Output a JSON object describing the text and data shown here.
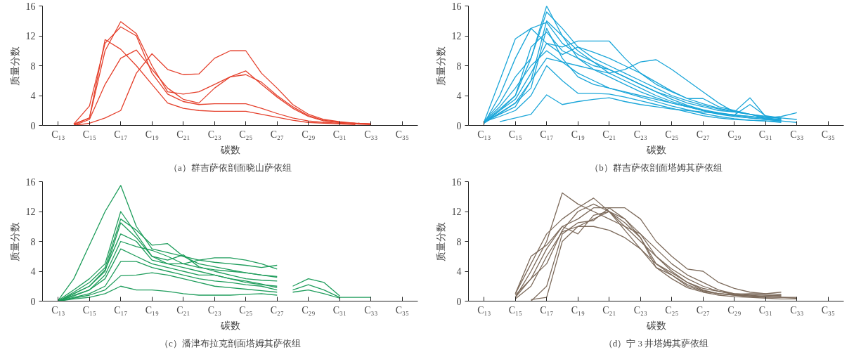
{
  "chart_data": [
    {
      "type": "line",
      "title": "（a）群吉萨依剖面晓山萨依组",
      "xlabel": "碳数",
      "ylabel": "质量分数",
      "ylim": [
        0,
        16
      ],
      "grid": false,
      "categories": [
        "C₁₃",
        null,
        "C₁₅",
        null,
        "C₁₇",
        null,
        "C₁₉",
        null,
        "C₂₁",
        null,
        "C₂₃",
        null,
        "C₂₅",
        null,
        "C₂₇",
        null,
        "C₂₉",
        null,
        "C₃₁",
        null,
        "C₃₃",
        null,
        "C₃₅"
      ],
      "yticks": [
        0,
        4,
        8,
        12,
        16
      ],
      "series": [
        {
          "color": "#e5412d",
          "values": [
            null,
            0.1,
            1,
            10,
            13.9,
            12.3,
            8,
            4.5,
            4.2,
            4.5,
            5.5,
            6.5,
            7.3,
            5.5,
            3.8,
            2.3,
            1.2,
            0.6,
            0.4,
            0.3,
            0.2,
            null,
            null
          ]
        },
        {
          "color": "#e5412d",
          "values": [
            null,
            0.2,
            2.6,
            11,
            13.2,
            12,
            7,
            4.2,
            3.2,
            2.8,
            2.9,
            2.9,
            2.9,
            2.3,
            1.6,
            1,
            0.6,
            0.4,
            0.3,
            0.2,
            0.1,
            null,
            null
          ]
        },
        {
          "color": "#e5412d",
          "values": [
            null,
            0.2,
            1,
            11.5,
            10.2,
            8,
            5.5,
            3,
            2.3,
            2,
            1.9,
            1.9,
            1.9,
            1.5,
            1.1,
            0.7,
            0.4,
            0.3,
            0.2,
            0.1,
            null,
            null,
            null
          ]
        },
        {
          "color": "#e5412d",
          "values": [
            null,
            0,
            0.8,
            5.5,
            9,
            10.1,
            7.5,
            5,
            3.5,
            3,
            5,
            6.5,
            6.8,
            5.8,
            4,
            2.5,
            1.3,
            0.7,
            0.4,
            0.3,
            0.2,
            null,
            null
          ]
        },
        {
          "color": "#e5412d",
          "values": [
            null,
            0,
            0.3,
            1,
            2,
            7,
            9.6,
            7.5,
            6.8,
            6.9,
            9,
            10,
            10,
            7,
            5,
            2.8,
            1.5,
            0.8,
            0.5,
            0.3,
            0.2,
            null,
            null
          ]
        }
      ]
    },
    {
      "type": "line",
      "title": "（b）群吉萨依剖面塔姆其萨依组",
      "xlabel": "碳数",
      "ylabel": "质量分数",
      "ylim": [
        0,
        16
      ],
      "grid": false,
      "categories": [
        "C₁₃",
        null,
        "C₁₅",
        null,
        "C₁₇",
        null,
        "C₁₉",
        null,
        "C₂₁",
        null,
        "C₂₃",
        null,
        "C₂₅",
        null,
        "C₂₇",
        null,
        "C₂₉",
        null,
        "C₃₁",
        null,
        "C₃₃",
        null,
        "C₃₅"
      ],
      "yticks": [
        0,
        4,
        8,
        12,
        16
      ],
      "series": [
        {
          "color": "#1ba6d9",
          "values": [
            0.5,
            6,
            11.6,
            13,
            13.8,
            11,
            9.5,
            8.5,
            7.5,
            6.5,
            5.5,
            4.5,
            3.8,
            3,
            2.5,
            2,
            1.8,
            1.5,
            1.2,
            1,
            0.8,
            null,
            null
          ]
        },
        {
          "color": "#1ba6d9",
          "values": [
            0.3,
            2,
            4,
            9,
            16,
            12,
            9,
            7.5,
            6.5,
            5.5,
            4.5,
            3.7,
            3,
            2.5,
            2,
            1.6,
            1.3,
            1,
            0.8,
            0.6,
            0.4,
            null,
            null
          ]
        },
        {
          "color": "#1ba6d9",
          "values": [
            0.5,
            3,
            6.5,
            9,
            15.2,
            13,
            10.5,
            9,
            8,
            7,
            6,
            5,
            4,
            3.3,
            2.7,
            2.2,
            1.8,
            3.7,
            1.2,
            0.9,
            null,
            null,
            null
          ]
        },
        {
          "color": "#1ba6d9",
          "values": [
            0.3,
            4,
            9,
            13,
            11,
            10.5,
            11.3,
            11.3,
            11.3,
            9,
            7,
            5.5,
            4.5,
            3.6,
            3.6,
            2.5,
            2,
            1.5,
            1,
            0.7,
            null,
            null,
            null
          ]
        },
        {
          "color": "#1ba6d9",
          "values": [
            null,
            0.5,
            1,
            1.5,
            4.1,
            2.8,
            3.2,
            3.5,
            3.7,
            3.2,
            2.8,
            2.5,
            2.2,
            2,
            1.8,
            1.6,
            1.4,
            1.2,
            1,
            1.2,
            1.7,
            null,
            null
          ]
        },
        {
          "color": "#1ba6d9",
          "values": [
            0.5,
            2.5,
            5,
            8,
            10,
            8.5,
            8,
            7.5,
            7,
            7.5,
            8.5,
            8.8,
            7.5,
            6,
            4.5,
            3,
            1.8,
            1.5,
            1.2,
            1,
            null,
            null,
            null
          ]
        },
        {
          "color": "#1ba6d9",
          "values": [
            0.4,
            1.7,
            3,
            6,
            14,
            12,
            10,
            8.5,
            7,
            6,
            5,
            4,
            3.2,
            2.6,
            2,
            1.5,
            1.2,
            1,
            0.8,
            0.6,
            null,
            null,
            null
          ]
        },
        {
          "color": "#1ba6d9",
          "values": [
            0.3,
            1.6,
            3,
            5,
            13,
            9,
            6.5,
            5.5,
            5,
            4.5,
            4,
            3.5,
            3,
            2.5,
            2,
            1.6,
            1.4,
            1.2,
            0.9,
            0.7,
            null,
            null,
            null
          ]
        },
        {
          "color": "#1ba6d9",
          "values": [
            0.5,
            1.2,
            2,
            4,
            8,
            6,
            4.3,
            4.3,
            4.2,
            3.8,
            3.3,
            2.8,
            2.3,
            1.8,
            1.3,
            1,
            0.8,
            0.7,
            0.6,
            0.5,
            null,
            null,
            null
          ]
        },
        {
          "color": "#1ba6d9",
          "values": [
            0.4,
            2.2,
            4,
            10.5,
            12.5,
            10,
            9,
            8,
            7.5,
            6.5,
            5.5,
            4.5,
            3.5,
            2.7,
            2.1,
            1.7,
            1.4,
            2.8,
            1.3,
            1,
            null,
            null,
            null
          ]
        },
        {
          "color": "#1ba6d9",
          "values": [
            0.4,
            2,
            3.5,
            7,
            11,
            9.5,
            10.5,
            9.8,
            9,
            8,
            7,
            5.8,
            4.6,
            3.6,
            2.9,
            2.3,
            1.9,
            1.5,
            1,
            0.8,
            null,
            null,
            null
          ]
        },
        {
          "color": "#1ba6d9",
          "values": [
            0.5,
            1.5,
            2.5,
            6,
            9,
            8.5,
            7,
            6,
            5,
            4.4,
            3.8,
            3.2,
            2.6,
            2.1,
            1.6,
            1.2,
            0.9,
            0.7,
            0.6,
            0.4,
            null,
            null,
            null
          ]
        }
      ]
    },
    {
      "type": "line",
      "title": "（c）潘津布拉克剖面塔姆其萨依组",
      "xlabel": "碳数",
      "ylabel": "质量分数",
      "ylim": [
        0,
        16
      ],
      "grid": false,
      "categories": [
        "C₁₃",
        null,
        "C₁₅",
        null,
        "C₁₇",
        null,
        "C₁₉",
        null,
        "C₂₁",
        null,
        "C₂₃",
        null,
        "C₂₅",
        null,
        "C₂₇",
        null,
        "C₂₉",
        null,
        "C₃₁",
        null,
        "C₃₃",
        null,
        "C₃₅"
      ],
      "yticks": [
        0,
        4,
        8,
        12,
        16
      ],
      "series": [
        {
          "color": "#1f9d5c",
          "values": [
            0.1,
            3,
            7.5,
            12,
            15.5,
            10,
            7,
            6.5,
            6,
            5.5,
            5.2,
            5,
            4.8,
            4.5,
            4.8,
            null,
            null,
            null,
            null,
            null,
            null,
            null,
            null
          ]
        },
        {
          "color": "#1f9d5c",
          "values": [
            0.1,
            1.5,
            3,
            5,
            12,
            9,
            6,
            5,
            5,
            5.5,
            5.8,
            5.8,
            5.5,
            5,
            4.3,
            null,
            null,
            null,
            null,
            null,
            null,
            null,
            null
          ]
        },
        {
          "color": "#1f9d5c",
          "values": [
            0,
            1.2,
            2.5,
            4.5,
            11,
            9.5,
            7.5,
            7.7,
            6,
            5,
            4.6,
            4.2,
            3.8,
            3.5,
            3.2,
            null,
            null,
            null,
            null,
            null,
            null,
            null,
            null
          ]
        },
        {
          "color": "#1f9d5c",
          "values": [
            0,
            1,
            2,
            4,
            10.5,
            8.5,
            6,
            5.5,
            6.2,
            4.6,
            4,
            3.5,
            3,
            2.8,
            2.7,
            null,
            null,
            null,
            null,
            null,
            null,
            null,
            null
          ]
        },
        {
          "color": "#1f9d5c",
          "values": [
            0,
            1,
            2,
            4.2,
            9,
            8,
            5.5,
            5,
            4.5,
            4,
            3.5,
            3,
            2.5,
            2.2,
            2,
            null,
            null,
            null,
            null,
            null,
            null,
            null,
            null
          ]
        },
        {
          "color": "#1f9d5c",
          "values": [
            0,
            0.8,
            1.5,
            3.5,
            8,
            7.3,
            6.8,
            6,
            5,
            4.5,
            4.2,
            4,
            3.8,
            3.5,
            3.3,
            null,
            null,
            null,
            null,
            null,
            null,
            null,
            null
          ]
        },
        {
          "color": "#1f9d5c",
          "values": [
            0,
            0.7,
            1.5,
            3,
            7,
            6,
            5,
            4.5,
            4,
            3.5,
            3.5,
            3,
            2.7,
            2.3,
            1.8,
            null,
            null,
            null,
            null,
            null,
            null,
            null,
            null
          ]
        },
        {
          "color": "#1f9d5c",
          "values": [
            0,
            0.5,
            1,
            2,
            5.3,
            5.3,
            4.5,
            4,
            3.5,
            3,
            2.7,
            2.5,
            2.2,
            2,
            1.5,
            null,
            null,
            null,
            null,
            null,
            null,
            null,
            null
          ]
        },
        {
          "color": "#1f9d5c",
          "values": [
            0,
            0.4,
            0.8,
            1.5,
            3.4,
            3.5,
            3.8,
            3.5,
            3,
            2.5,
            2,
            1.8,
            1.6,
            1.4,
            1.2,
            null,
            null,
            null,
            null,
            null,
            null,
            null,
            null
          ]
        },
        {
          "color": "#1f9d5c",
          "values": [
            0,
            0.3,
            0.5,
            1,
            2,
            1.5,
            1.5,
            1.3,
            1,
            0.8,
            0.8,
            0.8,
            0.9,
            1,
            0.8,
            null,
            null,
            null,
            null,
            null,
            null,
            null,
            null
          ]
        },
        {
          "color": "#1f9d5c",
          "values": [
            null,
            null,
            null,
            null,
            null,
            null,
            null,
            null,
            null,
            null,
            null,
            null,
            null,
            null,
            null,
            2,
            3,
            2.5,
            0.7,
            null,
            null,
            null,
            null
          ]
        },
        {
          "color": "#1f9d5c",
          "values": [
            null,
            null,
            null,
            null,
            null,
            null,
            null,
            null,
            null,
            null,
            null,
            null,
            null,
            null,
            null,
            1.5,
            2.2,
            1.5,
            0.5,
            0.5,
            0.5,
            null,
            null
          ]
        },
        {
          "color": "#1f9d5c",
          "values": [
            null,
            null,
            null,
            null,
            null,
            null,
            null,
            null,
            null,
            null,
            null,
            null,
            null,
            null,
            null,
            1.2,
            1.5,
            1,
            0.4,
            null,
            null,
            null,
            null
          ]
        }
      ]
    },
    {
      "type": "line",
      "title": "（d）宁 3 井塔姆其萨依组",
      "xlabel": "碳数",
      "ylabel": "质量分数",
      "ylim": [
        0,
        16
      ],
      "grid": false,
      "categories": [
        "C₁₃",
        null,
        "C₁₅",
        null,
        "C₁₇",
        null,
        "C₁₉",
        null,
        "C₂₁",
        null,
        "C₂₃",
        null,
        "C₂₅",
        null,
        "C₂₇",
        null,
        "C₂₉",
        null,
        "C₃₁",
        null,
        "C₃₃",
        null,
        "C₃₅"
      ],
      "yticks": [
        0,
        4,
        8,
        12,
        16
      ],
      "series": [
        {
          "color": "#7d6b5c",
          "values": [
            null,
            null,
            0.5,
            4,
            8,
            14.5,
            13,
            12,
            11,
            10,
            9,
            7,
            5,
            3.5,
            2.5,
            1.5,
            1,
            0.8,
            0.6,
            0.5,
            0.4,
            null,
            null
          ]
        },
        {
          "color": "#7d6b5c",
          "values": [
            null,
            null,
            1,
            5,
            9,
            11,
            12.5,
            13.8,
            12,
            10,
            8,
            6,
            4.3,
            3,
            2,
            1.3,
            0.9,
            0.7,
            0.7,
            0.8,
            null,
            null,
            null
          ]
        },
        {
          "color": "#7d6b5c",
          "values": [
            null,
            null,
            0.5,
            3,
            7,
            10,
            11,
            12.5,
            12.5,
            12.5,
            11,
            8,
            6,
            4.3,
            4,
            2.5,
            1.7,
            1.2,
            1,
            0.9,
            null,
            null,
            null
          ]
        },
        {
          "color": "#7d6b5c",
          "values": [
            null,
            null,
            null,
            0.2,
            0.5,
            8,
            10,
            11,
            12,
            11,
            9,
            6,
            4,
            2.5,
            1.5,
            1,
            0.8,
            0.6,
            0.5,
            0.5,
            0.5,
            null,
            null
          ]
        },
        {
          "color": "#7d6b5c",
          "values": [
            null,
            null,
            1,
            6,
            7.5,
            10,
            9,
            11.5,
            12,
            10.5,
            8.5,
            4.5,
            3.5,
            2.2,
            1.4,
            1,
            0.8,
            0.7,
            0.6,
            0.6,
            null,
            null,
            null
          ]
        },
        {
          "color": "#7d6b5c",
          "values": [
            null,
            null,
            0.3,
            2,
            6,
            9.3,
            10,
            10,
            9.5,
            8.5,
            7,
            5,
            3.5,
            2,
            1.3,
            1,
            0.9,
            1,
            1,
            1.2,
            null,
            null,
            null
          ]
        },
        {
          "color": "#7d6b5c",
          "values": [
            null,
            null,
            null,
            0,
            2,
            9,
            10.5,
            10.8,
            12.5,
            11,
            8.5,
            5,
            3.8,
            2.5,
            1.7,
            1.3,
            1,
            0.9,
            0.8,
            0.7,
            null,
            null,
            null
          ]
        },
        {
          "color": "#7d6b5c",
          "values": [
            null,
            null,
            0.8,
            3,
            5,
            9.5,
            12,
            13,
            12,
            9.5,
            7,
            4.5,
            3,
            1.8,
            1.2,
            0.8,
            0.6,
            0.5,
            0.4,
            0.3,
            0.3,
            null,
            null
          ]
        }
      ]
    }
  ]
}
